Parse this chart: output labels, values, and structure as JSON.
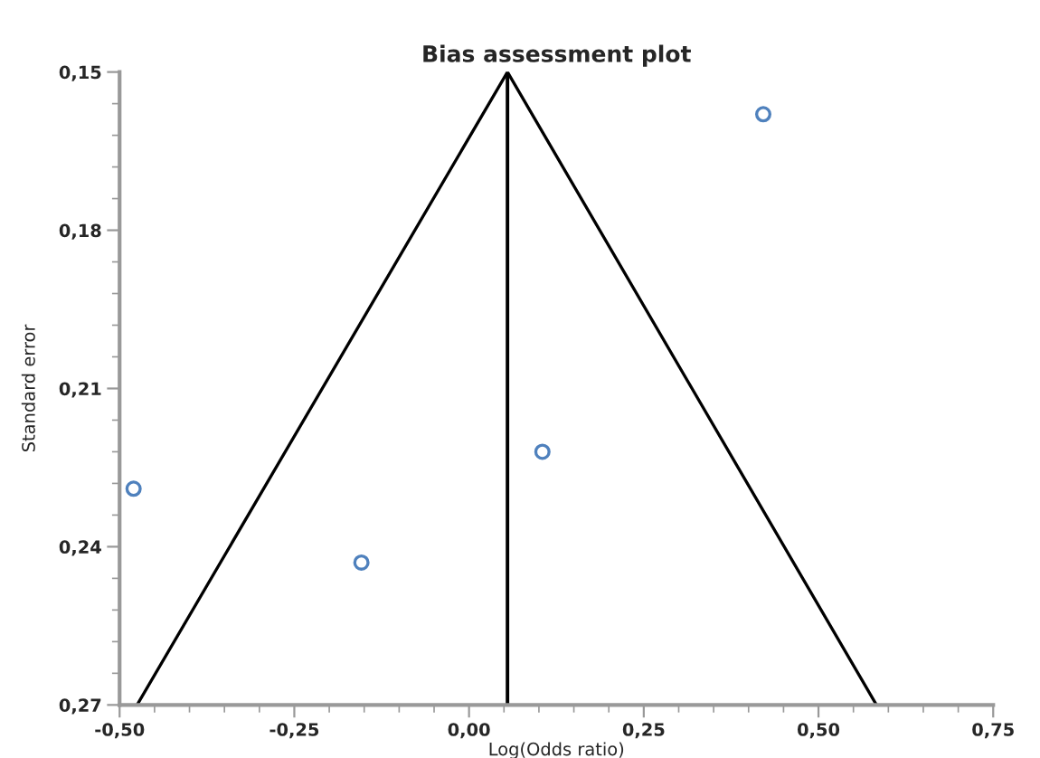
{
  "chart_data": {
    "type": "scatter",
    "title": "Bias assessment plot",
    "xlabel": "Log(Odds ratio)",
    "ylabel": "Standard error",
    "series": [
      {
        "color": "#4f81bd",
        "marker": "circle",
        "x": [
          0.421,
          0.105,
          -0.48,
          -0.154
        ],
        "values": [
          0.158,
          0.222,
          0.229,
          0.243
        ]
      },
      {
        "type": "line",
        "color": "#000000",
        "marker": "none",
        "line_style": "solid",
        "x": [
          -0.475,
          0.055,
          0.583
        ],
        "values": [
          0.27,
          0.15,
          0.27
        ]
      }
    ],
    "ref_lines": [
      {
        "axis": "x",
        "value": 0.055,
        "color": "#000000",
        "line_style": "solid"
      }
    ],
    "xlim": [
      -0.5,
      0.75
    ],
    "ylim": [
      0.27,
      0.15
    ],
    "xticks": [
      {
        "value": -0.5,
        "label": "-0,50"
      },
      {
        "value": -0.25,
        "label": "-0,25"
      },
      {
        "value": 0,
        "label": "0,00"
      },
      {
        "value": 0.25,
        "label": "0,25"
      },
      {
        "value": 0.5,
        "label": "0,50"
      },
      {
        "value": 0.75,
        "label": "0,75"
      }
    ],
    "yticks": [
      {
        "value": 0.15,
        "label": "0,15"
      },
      {
        "value": 0.18,
        "label": "0,18"
      },
      {
        "value": 0.21,
        "label": "0,21"
      },
      {
        "value": 0.24,
        "label": "0,24"
      },
      {
        "value": 0.27,
        "label": "0,27"
      }
    ],
    "grid": false,
    "legend": false
  }
}
